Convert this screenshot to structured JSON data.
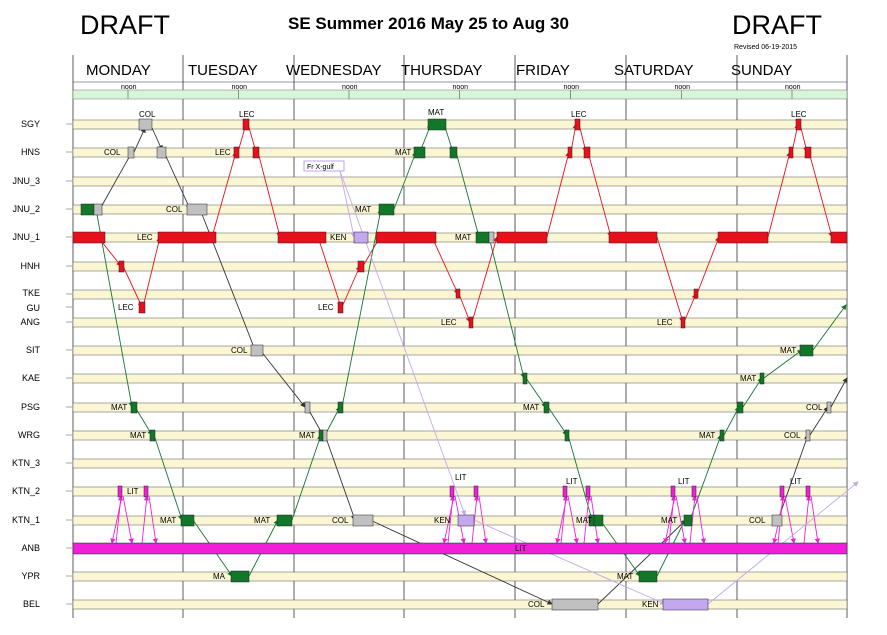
{
  "header": {
    "draft_left": "DRAFT",
    "draft_right": "DRAFT",
    "title": "SE Summer 2016 May 25 to Aug 30",
    "revised": "Revised 06-19-2015"
  },
  "days": [
    "MONDAY",
    "TUESDAY",
    "WEDNESDAY",
    "THURSDAY",
    "FRIDAY",
    "SATURDAY",
    "SUNDAY"
  ],
  "noon_label": "noon",
  "rows": [
    "SGY",
    "HNS",
    "JNU_3",
    "JNU_2",
    "JNU_1",
    "HNH",
    "TKE",
    "GU",
    "ANG",
    "SIT",
    "KAE",
    "PSG",
    "WRG",
    "KTN_3",
    "KTN_2",
    "KTN_1",
    "ANB",
    "YPR",
    "BEL"
  ],
  "colors": {
    "row_fill": "#fbf6d4",
    "header_bar": "#d8f5d8",
    "LEC": "#e8101c",
    "MAT": "#13772b",
    "COL": "#c0c0c0",
    "KEN": "#c4a8ee",
    "LIT": "#f020d8",
    "line_black": "#333333"
  },
  "bar_labels": {
    "col": "COL",
    "lec": "LEC",
    "mat": "MAT",
    "ma": "MA",
    "ken": "KEN",
    "lit": "LIT",
    "frx": "Fr X-gulf"
  }
}
